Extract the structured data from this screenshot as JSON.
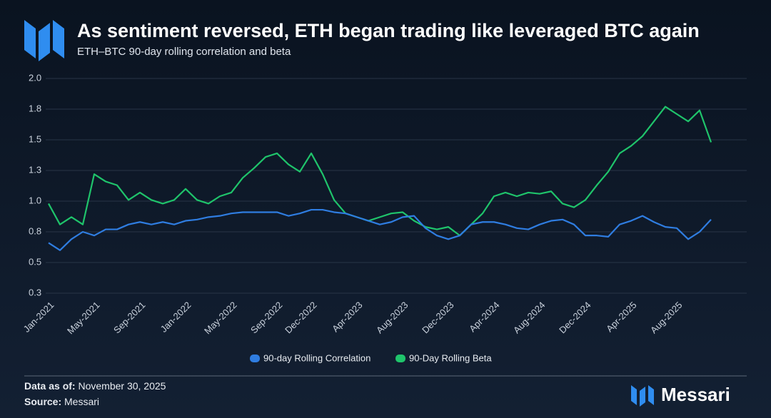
{
  "chart_data": {
    "type": "line",
    "title": "As sentiment reversed, ETH began trading like leveraged BTC again",
    "subtitle": "ETH–BTC 90-day rolling correlation and beta",
    "categories": [
      "Jan-2021",
      null,
      null,
      null,
      "May-2021",
      null,
      null,
      null,
      "Sep-2021",
      null,
      null,
      null,
      "Jan-2022",
      null,
      null,
      null,
      "May-2022",
      null,
      null,
      null,
      "Sep-2022",
      null,
      null,
      "Dec-2022",
      null,
      null,
      null,
      "Apr-2023",
      null,
      null,
      null,
      "Aug-2023",
      null,
      null,
      null,
      "Dec-2023",
      null,
      null,
      null,
      "Apr-2024",
      null,
      null,
      null,
      "Aug-2024",
      null,
      null,
      null,
      "Dec-2024",
      null,
      null,
      null,
      "Apr-2025",
      null,
      null,
      null,
      "Aug-2025",
      null,
      null,
      null
    ],
    "series": [
      {
        "name": "90-day Rolling Correlation",
        "color": "#2f7de1",
        "values": [
          0.66,
          0.6,
          0.69,
          0.75,
          0.72,
          0.77,
          0.77,
          0.81,
          0.83,
          0.81,
          0.83,
          0.81,
          0.84,
          0.85,
          0.87,
          0.88,
          0.9,
          0.91,
          0.91,
          0.91,
          0.91,
          0.88,
          0.9,
          0.93,
          0.93,
          0.91,
          0.9,
          0.87,
          0.84,
          0.81,
          0.83,
          0.87,
          0.88,
          0.78,
          0.72,
          0.69,
          0.72,
          0.81,
          0.83,
          0.83,
          0.81,
          0.78,
          0.77,
          0.81,
          0.84,
          0.85,
          0.81,
          0.72,
          0.72,
          0.71,
          0.81,
          0.84,
          0.88,
          0.83,
          0.79,
          0.78,
          0.69,
          0.75,
          0.85
        ]
      },
      {
        "name": "90-Day Rolling Beta",
        "color": "#1fc46b",
        "values": [
          0.98,
          0.81,
          0.87,
          0.81,
          1.22,
          1.16,
          1.13,
          1.01,
          1.07,
          1.01,
          0.98,
          1.01,
          1.1,
          1.01,
          0.98,
          1.04,
          1.07,
          1.19,
          1.27,
          1.36,
          1.39,
          1.3,
          1.24,
          1.39,
          1.22,
          1.01,
          0.9,
          0.87,
          0.84,
          0.87,
          0.9,
          0.91,
          0.84,
          0.79,
          0.77,
          0.79,
          0.72,
          0.81,
          0.9,
          1.04,
          1.07,
          1.04,
          1.07,
          1.06,
          1.08,
          0.98,
          0.95,
          1.01,
          1.13,
          1.24,
          1.39,
          1.45,
          1.53,
          1.65,
          1.77,
          1.71,
          1.65,
          1.74,
          1.48
        ]
      }
    ],
    "ylim": [
      0.25,
      2.0
    ],
    "yticks": [
      {
        "value": 0.25,
        "label": "0.3"
      },
      {
        "value": 0.5,
        "label": "0.5"
      },
      {
        "value": 0.75,
        "label": "0.8"
      },
      {
        "value": 1.0,
        "label": "1.0"
      },
      {
        "value": 1.25,
        "label": "1.3"
      },
      {
        "value": 1.5,
        "label": "1.5"
      },
      {
        "value": 1.75,
        "label": "1.8"
      },
      {
        "value": 2.0,
        "label": "2.0"
      }
    ],
    "grid": true
  },
  "footer": {
    "date_label": "Data as of:",
    "date": "November 30, 2025",
    "source_label": "Source:",
    "source": "Messari"
  },
  "brand": "Messari"
}
